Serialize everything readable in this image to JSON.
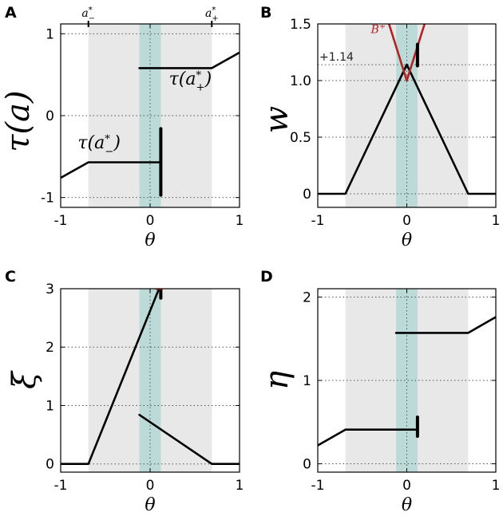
{
  "chart_data": [
    {
      "id": "A",
      "type": "line",
      "panel_label": "A",
      "xlabel": "θ",
      "ylabel": "τ(a)",
      "xlim": [
        -1,
        1
      ],
      "ylim": [
        -1.12,
        1.12
      ],
      "xticks": [
        -1,
        0,
        1
      ],
      "xtick_labels": [
        "-1",
        "0",
        "1"
      ],
      "yticks": [
        -1,
        0,
        1
      ],
      "ytick_labels": [
        "-1",
        "0",
        "1"
      ],
      "grid_y": [
        -1,
        0,
        1
      ],
      "grid_x": [
        0
      ],
      "shaded_region": [
        -0.69,
        0.69
      ],
      "teal_band": [
        -0.12,
        0.12
      ],
      "top_markers": [
        {
          "x": -0.69,
          "label": "a*−"
        },
        {
          "x": 0.69,
          "label": "a*+"
        }
      ],
      "annotations": [
        {
          "text": "τ(a*+)",
          "x": 0.45,
          "y": 0.38
        },
        {
          "text": "τ(a*−)",
          "x": -0.57,
          "y": -0.4
        }
      ],
      "series": [
        {
          "name": "tau_left",
          "color": "#000000",
          "points": [
            [
              -1,
              -0.76
            ],
            [
              -0.69,
              -0.57
            ],
            [
              0.12,
              -0.57
            ]
          ]
        },
        {
          "name": "tau_right",
          "color": "#000000",
          "points": [
            [
              -0.12,
              0.58
            ],
            [
              0.69,
              0.58
            ],
            [
              1,
              0.77
            ]
          ]
        },
        {
          "name": "tau_spike",
          "color": "#000000",
          "width": 4,
          "points": [
            [
              0.12,
              -0.97
            ],
            [
              0.12,
              -0.16
            ]
          ]
        }
      ]
    },
    {
      "id": "B",
      "type": "line",
      "panel_label": "B",
      "xlabel": "θ",
      "ylabel": "w",
      "xlim": [
        -1,
        1
      ],
      "ylim": [
        -0.12,
        1.5
      ],
      "xticks": [
        -1,
        0,
        1
      ],
      "xtick_labels": [
        "-1",
        "0",
        "1"
      ],
      "yticks": [
        0,
        0.5,
        1.0,
        1.5
      ],
      "ytick_labels": [
        "0",
        "0.5",
        "1.0",
        "1.5"
      ],
      "grid_y": [
        0,
        0.5,
        1.0,
        1.5
      ],
      "extra_grid_y": 1.14,
      "extra_grid_label": "+1.14",
      "grid_x": [
        0
      ],
      "shaded_region": [
        -0.69,
        0.69
      ],
      "teal_band": [
        -0.12,
        0.12
      ],
      "annotations": [
        {
          "text": "B+",
          "x": -0.32,
          "y": 1.42,
          "color": "#b22222"
        }
      ],
      "series": [
        {
          "name": "w",
          "color": "#000000",
          "points": [
            [
              -1,
              0
            ],
            [
              -0.69,
              0
            ],
            [
              0,
              1.14
            ],
            [
              0.69,
              0
            ],
            [
              1,
              0
            ]
          ]
        },
        {
          "name": "B_plus_left",
          "color": "#b22222",
          "points": [
            [
              -0.2,
              1.5
            ],
            [
              0,
              1.0
            ]
          ]
        },
        {
          "name": "B_plus_right",
          "color": "#b22222",
          "points": [
            [
              0,
              1.0
            ],
            [
              0.2,
              1.5
            ]
          ]
        },
        {
          "name": "w_spike",
          "color": "#000000",
          "width": 4,
          "points": [
            [
              0.12,
              1.13
            ],
            [
              0.12,
              1.32
            ]
          ]
        }
      ]
    },
    {
      "id": "C",
      "type": "line",
      "panel_label": "C",
      "xlabel": "θ",
      "ylabel": "ξ",
      "xlim": [
        -1,
        1
      ],
      "ylim": [
        -0.14,
        3
      ],
      "xticks": [
        -1,
        0,
        1
      ],
      "xtick_labels": [
        "-1",
        "0",
        "1"
      ],
      "yticks": [
        0,
        1,
        2,
        3
      ],
      "ytick_labels": [
        "0",
        "1",
        "2",
        "3"
      ],
      "grid_y": [
        0,
        1,
        2,
        3
      ],
      "grid_x": [
        0
      ],
      "shaded_region": [
        -0.69,
        0.69
      ],
      "teal_band": [
        -0.12,
        0.12
      ],
      "series": [
        {
          "name": "xi_left",
          "color": "#000000",
          "points": [
            [
              -1,
              0
            ],
            [
              -0.69,
              0
            ],
            [
              0.1,
              3.0
            ]
          ]
        },
        {
          "name": "xi_right",
          "color": "#000000",
          "points": [
            [
              -0.12,
              0.84
            ],
            [
              0.69,
              0
            ],
            [
              1,
              0
            ]
          ]
        },
        {
          "name": "xi_spike",
          "color": "#000000",
          "width": 4,
          "points": [
            [
              0.12,
              2.98
            ],
            [
              0.12,
              2.84
            ]
          ]
        },
        {
          "name": "xi_red",
          "color": "#b22222",
          "width": 3,
          "points": [
            [
              0.07,
              3.0
            ],
            [
              0.13,
              3.0
            ]
          ]
        }
      ]
    },
    {
      "id": "D",
      "type": "line",
      "panel_label": "D",
      "xlabel": "θ",
      "ylabel": "η",
      "xlim": [
        -1,
        1
      ],
      "ylim": [
        -0.1,
        2.1
      ],
      "xticks": [
        -1,
        0,
        1
      ],
      "xtick_labels": [
        "-1",
        "0",
        "1"
      ],
      "yticks": [
        0,
        1,
        2
      ],
      "ytick_labels": [
        "0",
        "1",
        "2"
      ],
      "grid_y": [
        0,
        1,
        2
      ],
      "grid_x": [
        0
      ],
      "shaded_region": [
        -0.69,
        0.69
      ],
      "teal_band": [
        -0.12,
        0.12
      ],
      "series": [
        {
          "name": "eta_left",
          "color": "#000000",
          "points": [
            [
              -1,
              0.22
            ],
            [
              -0.69,
              0.41
            ],
            [
              0.12,
              0.41
            ]
          ]
        },
        {
          "name": "eta_right",
          "color": "#000000",
          "points": [
            [
              -0.12,
              1.57
            ],
            [
              0.69,
              1.57
            ],
            [
              1,
              1.76
            ]
          ]
        },
        {
          "name": "eta_spike",
          "color": "#000000",
          "width": 4,
          "points": [
            [
              0.12,
              0.33
            ],
            [
              0.12,
              0.56
            ]
          ]
        }
      ]
    }
  ]
}
